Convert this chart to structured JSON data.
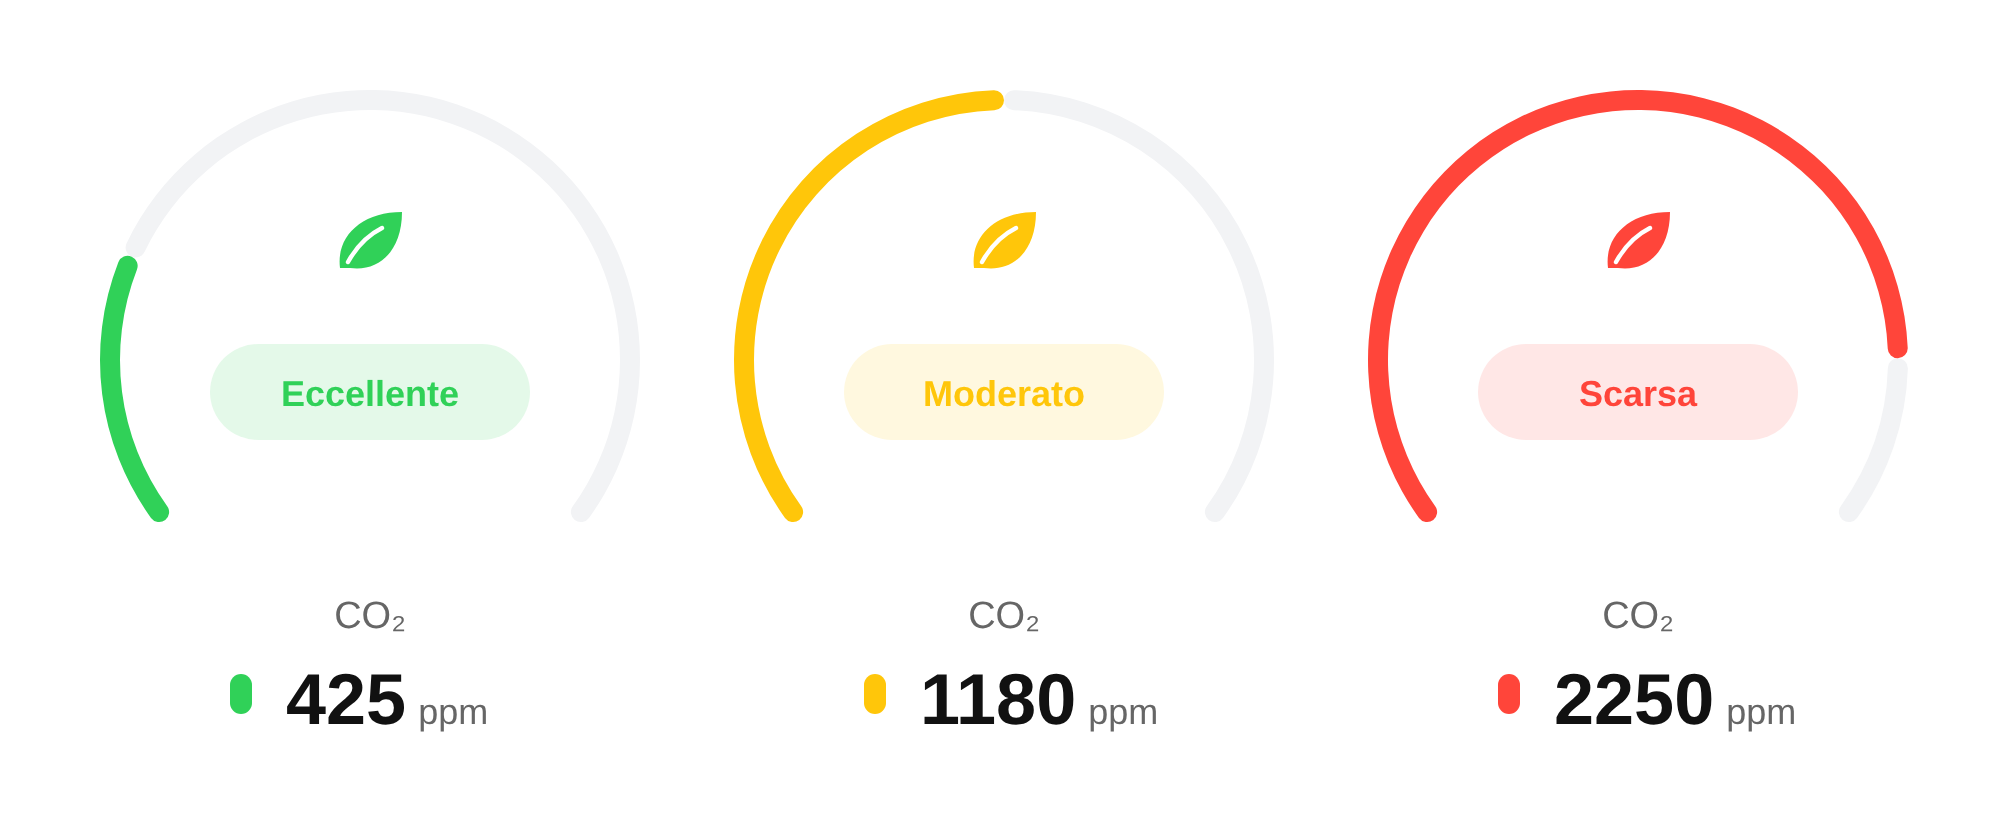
{
  "chart_data": [
    {
      "type": "donut",
      "categories": [
        null,
        null
      ],
      "values": [
        24,
        76
      ],
      "colors": [
        "#30d158",
        "#f2f3f5"
      ],
      "annotations": [
        "Eccellente",
        "CO₂",
        "425",
        "ppm"
      ]
    },
    {
      "type": "donut",
      "categories": [
        null,
        null
      ],
      "values": [
        50,
        50
      ],
      "colors": [
        "#ffc60a",
        "#f2f3f5"
      ],
      "annotations": [
        "Moderato",
        "CO₂",
        "1180",
        "ppm"
      ]
    },
    {
      "type": "donut",
      "categories": [
        null,
        null
      ],
      "values": [
        85,
        15
      ],
      "colors": [
        "#ff453a",
        "#f2f3f5"
      ],
      "annotations": [
        "Scarsa",
        "CO₂",
        "2250",
        "ppm"
      ]
    }
  ]
}
